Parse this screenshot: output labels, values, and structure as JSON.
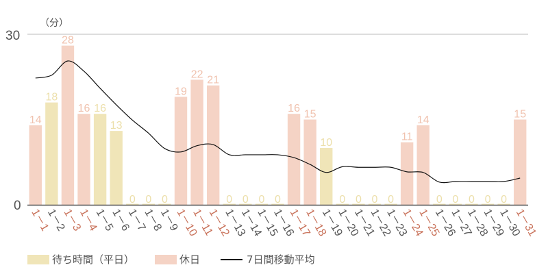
{
  "chart_data": {
    "type": "bar",
    "title": "",
    "unit_label": "（分）",
    "xlabel": "",
    "ylabel": "分",
    "ylim": [
      0,
      30
    ],
    "yticks": [
      0,
      30
    ],
    "grid": true,
    "legend_position": "bottom-left",
    "categories": [
      "1-1",
      "1-2",
      "1-3",
      "1-4",
      "1-5",
      "1-6",
      "1-7",
      "1-8",
      "1-9",
      "1-10",
      "1-11",
      "1-12",
      "1-13",
      "1-14",
      "1-15",
      "1-16",
      "1-17",
      "1-18",
      "1-19",
      "1-20",
      "1-21",
      "1-22",
      "1-23",
      "1-24",
      "1-25",
      "1-26",
      "1-27",
      "1-28",
      "1-29",
      "1-30",
      "1-31"
    ],
    "values": [
      14,
      18,
      28,
      16,
      16,
      13,
      0,
      0,
      0,
      19,
      22,
      21,
      0,
      0,
      0,
      0,
      16,
      15,
      10,
      0,
      0,
      0,
      0,
      11,
      14,
      0,
      0,
      0,
      0,
      0,
      15
    ],
    "day_type": [
      "holiday",
      "weekday",
      "holiday",
      "holiday",
      "weekday",
      "weekday",
      "weekday",
      "weekday",
      "weekday",
      "holiday",
      "holiday",
      "holiday",
      "weekday",
      "weekday",
      "weekday",
      "weekday",
      "holiday",
      "holiday",
      "weekday",
      "weekday",
      "weekday",
      "weekday",
      "weekday",
      "holiday",
      "holiday",
      "weekday",
      "weekday",
      "weekday",
      "weekday",
      "weekday",
      "holiday"
    ],
    "series": [
      {
        "name": "待ち時間（平日）",
        "type": "bar",
        "color": "#f0e5b8"
      },
      {
        "name": "休日",
        "type": "bar",
        "color": "#f5d3c5"
      },
      {
        "name": "7日間移動平均",
        "type": "line",
        "color": "#111111",
        "x": [
          "1-1",
          "1-2",
          "1-3",
          "1-4",
          "1-5",
          "1-6",
          "1-7",
          "1-8",
          "1-9",
          "1-10",
          "1-11",
          "1-12",
          "1-13",
          "1-14",
          "1-15",
          "1-16",
          "1-17",
          "1-18",
          "1-19",
          "1-20",
          "1-21",
          "1-22",
          "1-23",
          "1-24",
          "1-25",
          "1-26",
          "1-27",
          "1-28",
          "1-29",
          "1-30",
          "1-31"
        ],
        "values": [
          22.3,
          22.8,
          25.3,
          23.5,
          20.5,
          17.6,
          14.9,
          12.6,
          9.9,
          9.3,
          10.4,
          10.6,
          8.8,
          8.8,
          8.8,
          8.8,
          8.3,
          7.1,
          5.7,
          6.7,
          6.6,
          6.6,
          6.6,
          5.8,
          5.7,
          4.0,
          4.1,
          4.1,
          4.1,
          4.1,
          4.7
        ]
      }
    ]
  },
  "colors": {
    "weekday_bar": "#f0e5b8",
    "holiday_bar": "#f5d3c5",
    "weekday_value": "#ecdfaa",
    "holiday_value": "#f0c2ae",
    "weekday_label": "#555555",
    "holiday_label": "#c87058",
    "line": "#111111",
    "grid": "#bbbbbb",
    "axis": "#555555"
  },
  "legend": {
    "weekday": "待ち時間（平日）",
    "holiday": "休日",
    "moving_average": "7日間移動平均"
  }
}
